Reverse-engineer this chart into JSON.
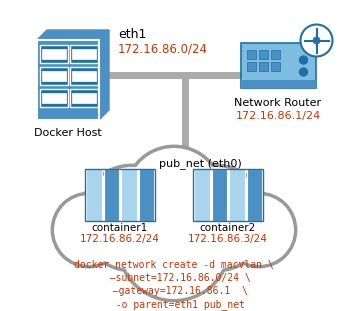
{
  "bg_color": "#ffffff",
  "docker_host_label": "Docker Host",
  "eth1_label": "eth1",
  "eth1_ip": "172.16.86.0/24",
  "router_label": "Network Router",
  "router_ip": "172.16.86.1/24",
  "cloud_label": "pub_net (eth0)",
  "container1_label": "container1",
  "container1_ip": "172.16.86.2/24",
  "container2_label": "container2",
  "container2_ip": "172.16.86.3/24",
  "cmd_line1": "docker network create -d macvlan \\",
  "cmd_line2": "  –subnet=172.16.86.0/24 \\",
  "cmd_line3": "  –gateway=172.16.86.1  \\",
  "cmd_line4": "  -o parent=eth1 pub_net",
  "ip_color": "#cc3300",
  "label_color": "#000000",
  "blue_dark": "#1e6fa8",
  "blue_mid": "#4a90c4",
  "blue_light": "#7fbde0",
  "blue_container_dark": "#4a90c4",
  "blue_container_light": "#aad4ee",
  "gray_line": "#aaaaaa",
  "cloud_stroke": "#999999",
  "cloud_fill": "#ffffff"
}
